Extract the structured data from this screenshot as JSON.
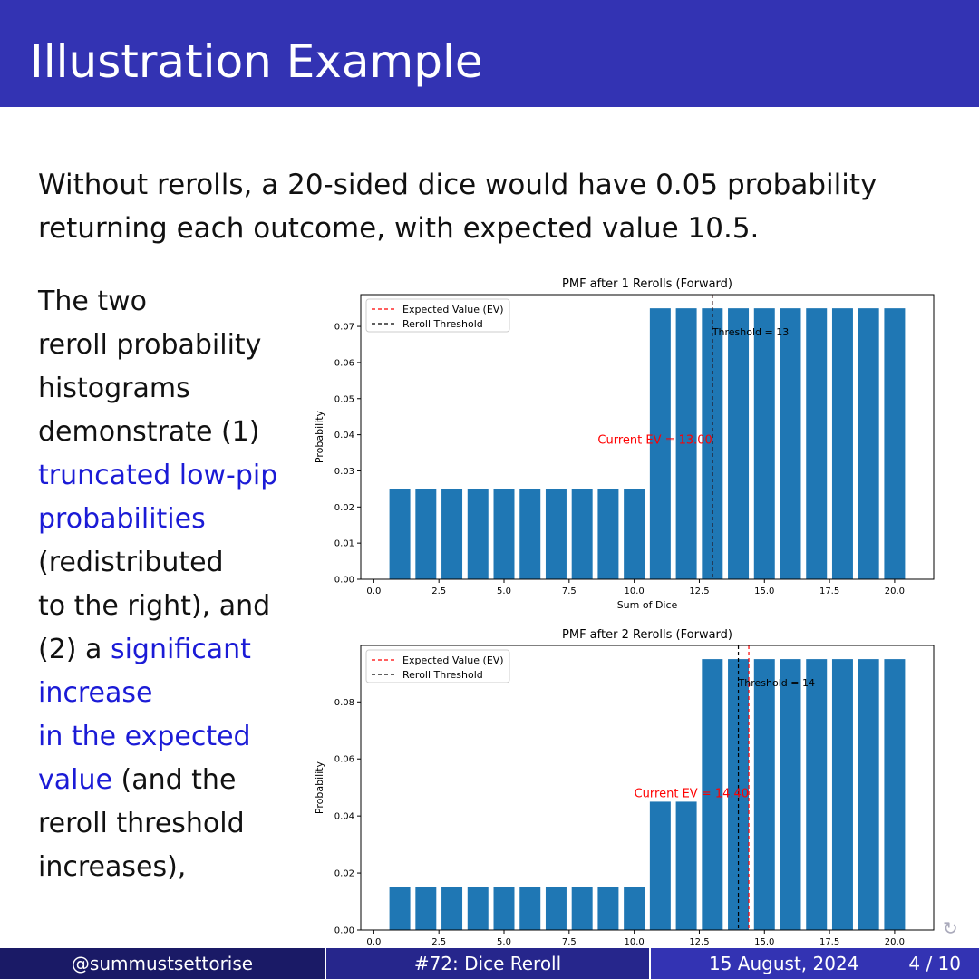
{
  "header": {
    "title": "Illustration Example"
  },
  "intro": {
    "line1": "Without rerolls, a 20-sided dice would have 0.05 probability",
    "line2": "returning each outcome, with expected value 10.5."
  },
  "side_text": {
    "l1": "The two",
    "l2": "reroll probability",
    "l3": "histograms",
    "l4": "demonstrate (1)",
    "l5_hl": "truncated low-pip",
    "l6_hl": "probabilities",
    "l7": "(redistributed",
    "l8": "to the right), and",
    "l9_pre": "(2) a ",
    "l9_hl": "significant",
    "l10_hl": "increase",
    "l11_hl": "in the expected",
    "l12_hl": "value",
    "l12_post": " (and the",
    "l13": "reroll threshold",
    "l14": "increases),"
  },
  "chart_data": [
    {
      "type": "bar",
      "title": "PMF after 1 Rerolls (Forward)",
      "xlabel": "Sum of Dice",
      "ylabel": "Probability",
      "x": [
        1,
        2,
        3,
        4,
        5,
        6,
        7,
        8,
        9,
        10,
        11,
        12,
        13,
        14,
        15,
        16,
        17,
        18,
        19,
        20
      ],
      "values": [
        0.025,
        0.025,
        0.025,
        0.025,
        0.025,
        0.025,
        0.025,
        0.025,
        0.025,
        0.025,
        0.075,
        0.075,
        0.075,
        0.075,
        0.075,
        0.075,
        0.075,
        0.075,
        0.075,
        0.075
      ],
      "xlim": [
        -0.5,
        21.5
      ],
      "ylim": [
        0,
        0.0788
      ],
      "xticks": [
        0.0,
        2.5,
        5.0,
        7.5,
        10.0,
        12.5,
        15.0,
        17.5,
        20.0
      ],
      "xtick_labels": [
        "0.0",
        "2.5",
        "5.0",
        "7.5",
        "10.0",
        "12.5",
        "15.0",
        "17.5",
        "20.0"
      ],
      "yticks": [
        0,
        0.01,
        0.02,
        0.03,
        0.04,
        0.05,
        0.06,
        0.07
      ],
      "ytick_labels": [
        "0.00",
        "0.01",
        "0.02",
        "0.03",
        "0.04",
        "0.05",
        "0.06",
        "0.07"
      ],
      "ev": 13.0,
      "threshold": 13,
      "ev_label": "Current EV = 13.00",
      "threshold_label": "Threshold = 13",
      "ev_label_pos": [
        10.8,
        0.0375
      ],
      "threshold_label_pos": [
        13,
        0.0675
      ],
      "legend": [
        "Expected Value (EV)",
        "Reroll Threshold"
      ],
      "legend_placement": "upper-left",
      "show_xlabel": true,
      "colors": {
        "bar": "#1f77b4",
        "ev": "#ff0000",
        "threshold": "#000000"
      }
    },
    {
      "type": "bar",
      "title": "PMF after 2 Rerolls (Forward)",
      "xlabel": "",
      "ylabel": "Probability",
      "x": [
        1,
        2,
        3,
        4,
        5,
        6,
        7,
        8,
        9,
        10,
        11,
        12,
        13,
        14,
        15,
        16,
        17,
        18,
        19,
        20
      ],
      "values": [
        0.015,
        0.015,
        0.015,
        0.015,
        0.015,
        0.015,
        0.015,
        0.015,
        0.015,
        0.015,
        0.045,
        0.045,
        0.095,
        0.095,
        0.095,
        0.095,
        0.095,
        0.095,
        0.095,
        0.095
      ],
      "xlim": [
        -0.5,
        21.5
      ],
      "ylim": [
        0,
        0.0998
      ],
      "xticks": [
        0.0,
        2.5,
        5.0,
        7.5,
        10.0,
        12.5,
        15.0,
        17.5,
        20.0
      ],
      "xtick_labels": [
        "0.0",
        "2.5",
        "5.0",
        "7.5",
        "10.0",
        "12.5",
        "15.0",
        "17.5",
        "20.0"
      ],
      "yticks": [
        0,
        0.02,
        0.04,
        0.06,
        0.08
      ],
      "ytick_labels": [
        "0.00",
        "0.02",
        "0.04",
        "0.06",
        "0.08"
      ],
      "ev": 14.4,
      "threshold": 14,
      "ev_label": "Current EV = 14.40",
      "threshold_label": "Threshold = 14",
      "ev_label_pos": [
        12.2,
        0.0465
      ],
      "threshold_label_pos": [
        14,
        0.0855
      ],
      "legend": [
        "Expected Value (EV)",
        "Reroll Threshold"
      ],
      "legend_placement": "upper-left",
      "show_xlabel": false,
      "colors": {
        "bar": "#1f77b4",
        "ev": "#ff0000",
        "threshold": "#000000"
      }
    }
  ],
  "footer": {
    "author": "@summustsettorise",
    "talk": "#72: Dice Reroll",
    "date": "15 August, 2024",
    "page": "4 / 10"
  },
  "nav": {
    "icon": "navigation-loop-icon"
  },
  "colors": {
    "header_bg": "#3333b3",
    "highlight": "#1b1bd6"
  }
}
